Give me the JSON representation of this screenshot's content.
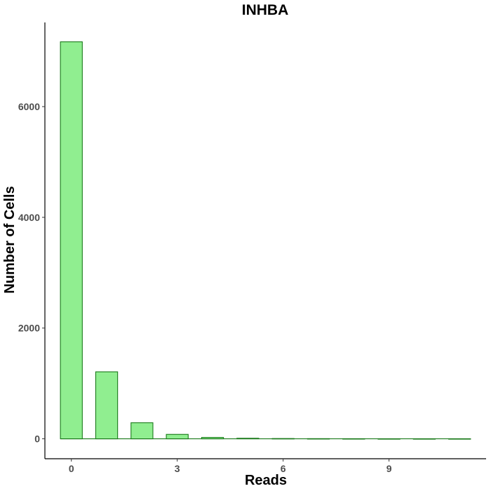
{
  "chart_data": {
    "type": "bar",
    "title": "INHBA",
    "xlabel": "Reads",
    "ylabel": "Number of Cells",
    "x": [
      0,
      1,
      2,
      3,
      4,
      5,
      6,
      7,
      8,
      9,
      10,
      11
    ],
    "values": [
      7170,
      1210,
      290,
      80,
      25,
      10,
      5,
      3,
      2,
      1,
      1,
      1
    ],
    "xlim": [
      -0.75,
      11.75
    ],
    "ylim": [
      -360,
      7520
    ],
    "xticks": [
      0,
      3,
      6,
      9
    ],
    "yticks": [
      0,
      2000,
      4000,
      6000
    ],
    "xtick_labels": [
      "0",
      "3",
      "6",
      "9"
    ],
    "ytick_labels": [
      "0",
      "2000",
      "4000",
      "6000"
    ],
    "bar_fill": "#90ee90",
    "bar_stroke": "#1a7a1a",
    "grid": false,
    "legend": "none"
  }
}
